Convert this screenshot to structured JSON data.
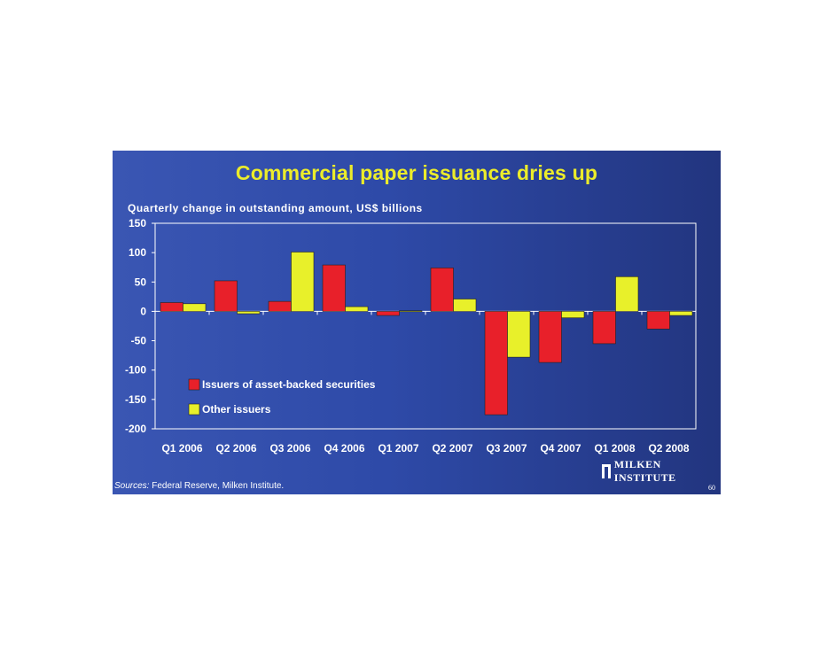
{
  "slide": {
    "title": "Commercial paper issuance dries up",
    "subtitle": "Quarterly change in outstanding amount, US$ billions",
    "sources_label": "Sources:",
    "sources_text": " Federal Reserve, Milken Institute.",
    "logo_text": "MILKEN INSTITUTE",
    "page_number": "60"
  },
  "colors": {
    "background_left": "#3a56b3",
    "background_right": "#22357f",
    "title": "#ecec2a",
    "series_abs": "#e8202a",
    "series_other": "#e8f02a",
    "plot_border": "#ffffff"
  },
  "chart_data": {
    "type": "bar",
    "categories": [
      "Q1 2006",
      "Q2 2006",
      "Q3 2006",
      "Q4 2006",
      "Q1 2007",
      "Q2 2007",
      "Q3 2007",
      "Q4 2007",
      "Q1 2008",
      "Q2 2008"
    ],
    "series": [
      {
        "name": "Issuers of asset-backed securities",
        "values": [
          15,
          52,
          17,
          79,
          -7,
          74,
          -176,
          -87,
          -55,
          -30
        ]
      },
      {
        "name": "Other issuers",
        "values": [
          13,
          -4,
          101,
          8,
          1,
          21,
          -78,
          -11,
          59,
          -7
        ]
      }
    ],
    "yticks": [
      150,
      100,
      50,
      0,
      -50,
      -100,
      -150,
      -200
    ],
    "ylim": [
      -200,
      150
    ],
    "ylabel": "Quarterly change in outstanding amount, US$ billions",
    "legend_position": "inside-lower-left",
    "grid": false
  }
}
